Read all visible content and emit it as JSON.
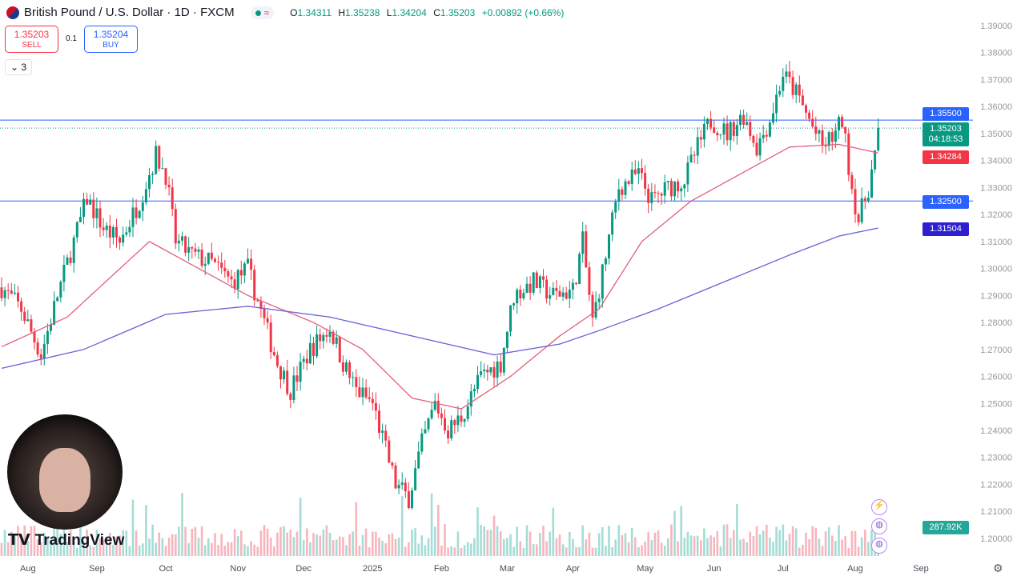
{
  "header": {
    "symbol": "British Pound / U.S. Dollar · 1D · FXCM",
    "open_label": "O",
    "open": "1.34311",
    "high_label": "H",
    "high": "1.35238",
    "low_label": "L",
    "low": "1.34204",
    "close_label": "C",
    "close": "1.35203",
    "change": "+0.00892 (+0.66%)",
    "status_icon": "≈"
  },
  "trade": {
    "sell_price": "1.35203",
    "sell_label": "SELL",
    "spread": "0.1",
    "buy_price": "1.35204",
    "buy_label": "BUY"
  },
  "indicators_toggle": "3",
  "price_tags": {
    "level_high": "1.35500",
    "last_price": "1.35203",
    "countdown": "04:18:53",
    "ma50": "1.34284",
    "level_low": "1.32500",
    "ma200": "1.31504",
    "volume": "287.92K"
  },
  "logo": "TradingView",
  "colors": {
    "up": "#089981",
    "down": "#f23645",
    "ma50": "#e0607a",
    "ma200": "#6c5fd6",
    "hline": "#2962ff"
  },
  "chart_data": {
    "type": "candlestick",
    "title": "British Pound / U.S. Dollar · 1D · FXCM",
    "ylim": [
      1.195,
      1.395
    ],
    "y_ticks": [
      "1.39000",
      "1.38000",
      "1.37000",
      "1.36000",
      "1.35000",
      "1.34000",
      "1.33000",
      "1.32000",
      "1.31000",
      "1.30000",
      "1.29000",
      "1.28000",
      "1.27000",
      "1.26000",
      "1.25000",
      "1.24000",
      "1.23000",
      "1.22000",
      "1.21000",
      "1.20000"
    ],
    "x_ticks": [
      {
        "label": "Aug",
        "day": 8
      },
      {
        "label": "Sep",
        "day": 29
      },
      {
        "label": "Oct",
        "day": 50
      },
      {
        "label": "Nov",
        "day": 72
      },
      {
        "label": "Dec",
        "day": 92
      },
      {
        "label": "2025",
        "day": 113
      },
      {
        "label": "Feb",
        "day": 134
      },
      {
        "label": "Mar",
        "day": 154
      },
      {
        "label": "Apr",
        "day": 174
      },
      {
        "label": "May",
        "day": 196
      },
      {
        "label": "Jun",
        "day": 217
      },
      {
        "label": "Jul",
        "day": 238
      },
      {
        "label": "Aug",
        "day": 260
      },
      {
        "label": "Sep",
        "day": 280
      }
    ],
    "price_path": [
      [
        0,
        1.293
      ],
      [
        6,
        1.285
      ],
      [
        12,
        1.268
      ],
      [
        17,
        1.29
      ],
      [
        22,
        1.31
      ],
      [
        26,
        1.326
      ],
      [
        31,
        1.315
      ],
      [
        36,
        1.31
      ],
      [
        42,
        1.325
      ],
      [
        47,
        1.342
      ],
      [
        50,
        1.335
      ],
      [
        53,
        1.31
      ],
      [
        58,
        1.305
      ],
      [
        64,
        1.302
      ],
      [
        70,
        1.295
      ],
      [
        75,
        1.3
      ],
      [
        80,
        1.28
      ],
      [
        84,
        1.265
      ],
      [
        88,
        1.255
      ],
      [
        94,
        1.27
      ],
      [
        100,
        1.278
      ],
      [
        104,
        1.265
      ],
      [
        108,
        1.255
      ],
      [
        113,
        1.25
      ],
      [
        116,
        1.237
      ],
      [
        120,
        1.22
      ],
      [
        124,
        1.215
      ],
      [
        128,
        1.235
      ],
      [
        132,
        1.25
      ],
      [
        136,
        1.24
      ],
      [
        140,
        1.245
      ],
      [
        146,
        1.26
      ],
      [
        152,
        1.265
      ],
      [
        156,
        1.29
      ],
      [
        162,
        1.295
      ],
      [
        168,
        1.29
      ],
      [
        174,
        1.292
      ],
      [
        177,
        1.31
      ],
      [
        180,
        1.28
      ],
      [
        184,
        1.305
      ],
      [
        188,
        1.33
      ],
      [
        194,
        1.335
      ],
      [
        198,
        1.325
      ],
      [
        203,
        1.33
      ],
      [
        208,
        1.333
      ],
      [
        212,
        1.345
      ],
      [
        216,
        1.355
      ],
      [
        221,
        1.35
      ],
      [
        226,
        1.357
      ],
      [
        230,
        1.345
      ],
      [
        234,
        1.355
      ],
      [
        238,
        1.372
      ],
      [
        242,
        1.365
      ],
      [
        246,
        1.355
      ],
      [
        250,
        1.345
      ],
      [
        254,
        1.35
      ],
      [
        256,
        1.355
      ],
      [
        259,
        1.33
      ],
      [
        261,
        1.318
      ],
      [
        264,
        1.33
      ],
      [
        266,
        1.342
      ],
      [
        267,
        1.352
      ]
    ],
    "ma50": [
      [
        0,
        1.271
      ],
      [
        20,
        1.282
      ],
      [
        45,
        1.31
      ],
      [
        60,
        1.3
      ],
      [
        75,
        1.29
      ],
      [
        95,
        1.28
      ],
      [
        110,
        1.27
      ],
      [
        125,
        1.252
      ],
      [
        140,
        1.248
      ],
      [
        155,
        1.26
      ],
      [
        170,
        1.275
      ],
      [
        182,
        1.285
      ],
      [
        195,
        1.31
      ],
      [
        210,
        1.325
      ],
      [
        225,
        1.335
      ],
      [
        240,
        1.345
      ],
      [
        255,
        1.346
      ],
      [
        267,
        1.3428
      ]
    ],
    "ma200": [
      [
        0,
        1.263
      ],
      [
        25,
        1.27
      ],
      [
        50,
        1.283
      ],
      [
        75,
        1.286
      ],
      [
        100,
        1.282
      ],
      [
        125,
        1.275
      ],
      [
        150,
        1.268
      ],
      [
        170,
        1.272
      ],
      [
        182,
        1.277
      ],
      [
        200,
        1.285
      ],
      [
        220,
        1.295
      ],
      [
        240,
        1.305
      ],
      [
        255,
        1.312
      ],
      [
        267,
        1.315
      ]
    ],
    "hlines": [
      1.355,
      1.325
    ],
    "last_price": 1.35203
  }
}
